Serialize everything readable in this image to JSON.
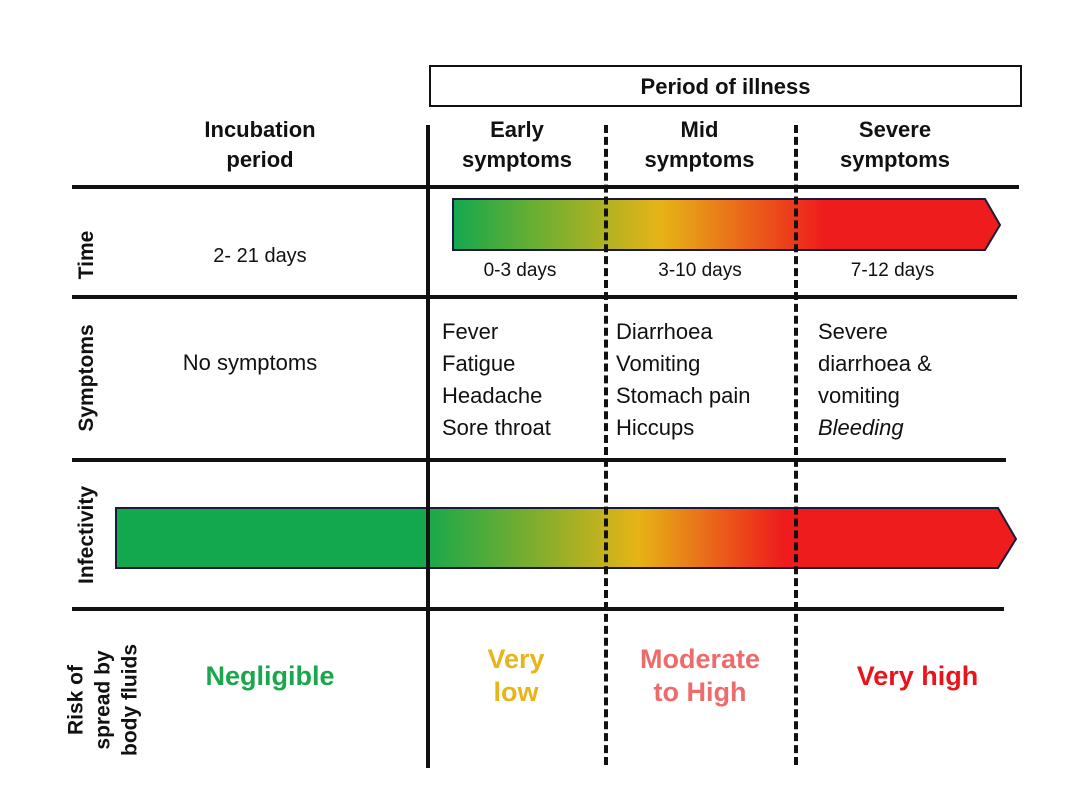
{
  "header": {
    "period_of_illness": "Period of illness",
    "incubation": [
      "Incubation",
      "period"
    ],
    "early": [
      "Early",
      "symptoms"
    ],
    "mid": [
      "Mid",
      "symptoms"
    ],
    "severe": [
      "Severe",
      "symptoms"
    ]
  },
  "rows": {
    "time": "Time",
    "symptoms": "Symptoms",
    "infectivity": "Infectivity",
    "risk": [
      "Risk of",
      "spread by",
      "body fluids"
    ]
  },
  "time": {
    "incubation": "2- 21 days",
    "early": "0-3 days",
    "mid": "3-10 days",
    "severe": "7-12 days"
  },
  "symptoms": {
    "incubation": "No symptoms",
    "early": [
      "Fever",
      "Fatigue",
      "Headache",
      "Sore throat"
    ],
    "mid": [
      "Diarrhoea",
      "Vomiting",
      "Stomach pain",
      "Hiccups"
    ],
    "severe": [
      "Severe",
      "diarrhoea &",
      "vomiting"
    ],
    "severe_italic": "Bleeding"
  },
  "risk": {
    "incubation": [
      "Negligible"
    ],
    "early": [
      "Very",
      "low"
    ],
    "mid": [
      "Moderate",
      "to High"
    ],
    "severe": [
      "Very high"
    ]
  },
  "colors": {
    "green": "#14a84e",
    "yellow": "#e6b416",
    "red": "#ee1c1c",
    "negligible": "#18a74a",
    "very_low": "#e9b41a",
    "moderate": "#ef6b6b",
    "very_high": "#e8141c"
  }
}
